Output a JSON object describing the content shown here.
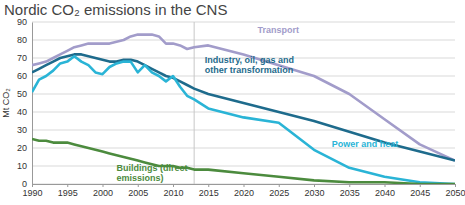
{
  "chart_data": {
    "type": "line",
    "title": "Nordic CO₂ emissions in the CNS",
    "y_label": "Mt CO₂",
    "x": [
      1990,
      1991,
      1992,
      1993,
      1994,
      1995,
      1996,
      1997,
      1998,
      1999,
      2000,
      2001,
      2002,
      2003,
      2004,
      2005,
      2006,
      2007,
      2008,
      2009,
      2010,
      2011,
      2012,
      2013,
      2015,
      2020,
      2025,
      2030,
      2035,
      2040,
      2045,
      2050
    ],
    "series": [
      {
        "name": "Transport",
        "color": "#a29cca",
        "values": [
          66,
          67,
          68,
          70,
          72,
          74,
          76,
          77,
          78,
          78,
          78,
          78,
          79,
          80,
          82,
          83,
          83,
          83,
          82,
          78,
          78,
          77,
          75,
          76,
          77,
          72,
          66,
          60,
          50,
          36,
          22,
          13
        ]
      },
      {
        "name": "Industry, oil, gas and other transformation",
        "color": "#1e6b8c",
        "values": [
          62,
          64,
          66,
          68,
          70,
          71,
          72,
          72,
          71,
          70,
          69,
          68,
          68,
          69,
          69,
          68,
          66,
          64,
          62,
          60,
          59,
          57,
          55,
          53,
          50,
          45,
          40,
          35,
          29,
          23,
          18,
          13
        ]
      },
      {
        "name": "Power and heat",
        "color": "#2ab4d6",
        "values": [
          51,
          58,
          60,
          63,
          67,
          68,
          71,
          68,
          66,
          62,
          61,
          65,
          67,
          68,
          68,
          62,
          66,
          62,
          60,
          57,
          60,
          54,
          49,
          47,
          42,
          37,
          34,
          19,
          9,
          4,
          1,
          0
        ]
      },
      {
        "name": "Buildings (direct emissions)",
        "color": "#4c8b3e",
        "values": [
          25,
          24,
          24,
          23,
          23,
          23,
          22,
          21,
          20,
          19,
          18,
          17,
          16,
          15,
          14,
          13,
          12,
          11,
          10,
          10,
          10,
          9,
          9,
          8,
          8,
          6,
          4,
          2,
          1,
          1,
          0,
          0
        ]
      }
    ],
    "vertical_line": 2013,
    "xlim": [
      1990,
      2050
    ],
    "xticks": [
      1990,
      1995,
      2000,
      2005,
      2010,
      2015,
      2020,
      2025,
      2030,
      2035,
      2040,
      2045,
      2050
    ],
    "ylim": [
      0,
      90
    ],
    "yticks": [
      0,
      10,
      20,
      30,
      40,
      50,
      60,
      70,
      80,
      90
    ],
    "grid": true
  }
}
